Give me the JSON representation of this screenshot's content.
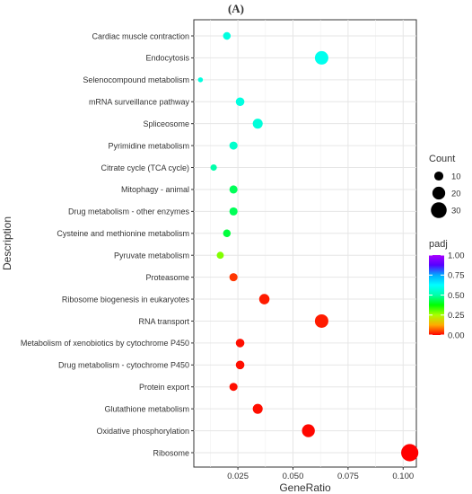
{
  "panel_label": "(A)",
  "chart_data": {
    "type": "scatter",
    "title": "",
    "xlabel": "GeneRatio",
    "ylabel": "Description",
    "xlim": [
      0.005,
      0.106
    ],
    "xticks": [
      0.025,
      0.05,
      0.075,
      0.1
    ],
    "xtick_labels": [
      "0.025",
      "0.050",
      "0.075",
      "0.100"
    ],
    "grid": true,
    "legend_position": "right",
    "categories": [
      "Cardiac muscle contraction",
      "Endocytosis",
      "Selenocompound metabolism",
      "mRNA surveillance pathway",
      "Spliceosome",
      "Pyrimidine metabolism",
      "Citrate cycle (TCA cycle)",
      "Mitophagy - animal",
      "Drug metabolism - other enzymes",
      "Cysteine and methionine metabolism",
      "Pyruvate metabolism",
      "Proteasome",
      "Ribosome biogenesis in eukaryotes",
      "RNA transport",
      "Metabolism of xenobiotics by cytochrome P450",
      "Drug metabolism - cytochrome P450",
      "Protein export",
      "Glutathione metabolism",
      "Oxidative phosphorylation",
      "Ribosome"
    ],
    "points": [
      {
        "category": "Cardiac muscle contraction",
        "generatio": 0.02,
        "count": 7,
        "padj": 0.58
      },
      {
        "category": "Endocytosis",
        "generatio": 0.063,
        "count": 22,
        "padj": 0.6
      },
      {
        "category": "Selenocompound metabolism",
        "generatio": 0.008,
        "count": 3,
        "padj": 0.58
      },
      {
        "category": "mRNA surveillance pathway",
        "generatio": 0.026,
        "count": 9,
        "padj": 0.58
      },
      {
        "category": "Spliceosome",
        "generatio": 0.034,
        "count": 12,
        "padj": 0.57
      },
      {
        "category": "Pyrimidine metabolism",
        "generatio": 0.023,
        "count": 8,
        "padj": 0.55
      },
      {
        "category": "Citrate cycle (TCA cycle)",
        "generatio": 0.014,
        "count": 5,
        "padj": 0.5
      },
      {
        "category": "Mitophagy - animal",
        "generatio": 0.023,
        "count": 8,
        "padj": 0.44
      },
      {
        "category": "Drug metabolism - other enzymes",
        "generatio": 0.023,
        "count": 8,
        "padj": 0.44
      },
      {
        "category": "Cysteine and methionine metabolism",
        "generatio": 0.02,
        "count": 7,
        "padj": 0.42
      },
      {
        "category": "Pyruvate metabolism",
        "generatio": 0.017,
        "count": 6,
        "padj": 0.28
      },
      {
        "category": "Proteasome",
        "generatio": 0.023,
        "count": 8,
        "padj": 0.04
      },
      {
        "category": "Ribosome biogenesis in eukaryotes",
        "generatio": 0.037,
        "count": 13,
        "padj": 0.02
      },
      {
        "category": "RNA transport",
        "generatio": 0.063,
        "count": 22,
        "padj": 0.02
      },
      {
        "category": "Metabolism of xenobiotics by cytochrome P450",
        "generatio": 0.026,
        "count": 9,
        "padj": 0.01
      },
      {
        "category": "Drug metabolism - cytochrome P450",
        "generatio": 0.026,
        "count": 9,
        "padj": 0.01
      },
      {
        "category": "Protein export",
        "generatio": 0.023,
        "count": 8,
        "padj": 0.01
      },
      {
        "category": "Glutathione metabolism",
        "generatio": 0.034,
        "count": 12,
        "padj": 0.01
      },
      {
        "category": "Oxidative phosphorylation",
        "generatio": 0.057,
        "count": 20,
        "padj": 0.005
      },
      {
        "category": "Ribosome",
        "generatio": 0.103,
        "count": 36,
        "padj": 0.0
      }
    ],
    "size_legend": {
      "title": "Count",
      "values": [
        10,
        20,
        30
      ],
      "labels": [
        "10",
        "20",
        "30"
      ]
    },
    "color_legend": {
      "title": "padj",
      "values": [
        1.0,
        0.75,
        0.5,
        0.25,
        0.0
      ],
      "labels": [
        "1.00",
        "0.75",
        "0.50",
        "0.25",
        "0.00"
      ],
      "colors": [
        "#ff0000",
        "#ffaa00",
        "#aaff00",
        "#00ff00",
        "#00ffaa",
        "#00ffff",
        "#00aaff",
        "#5500ff",
        "#aa00ff"
      ]
    }
  }
}
